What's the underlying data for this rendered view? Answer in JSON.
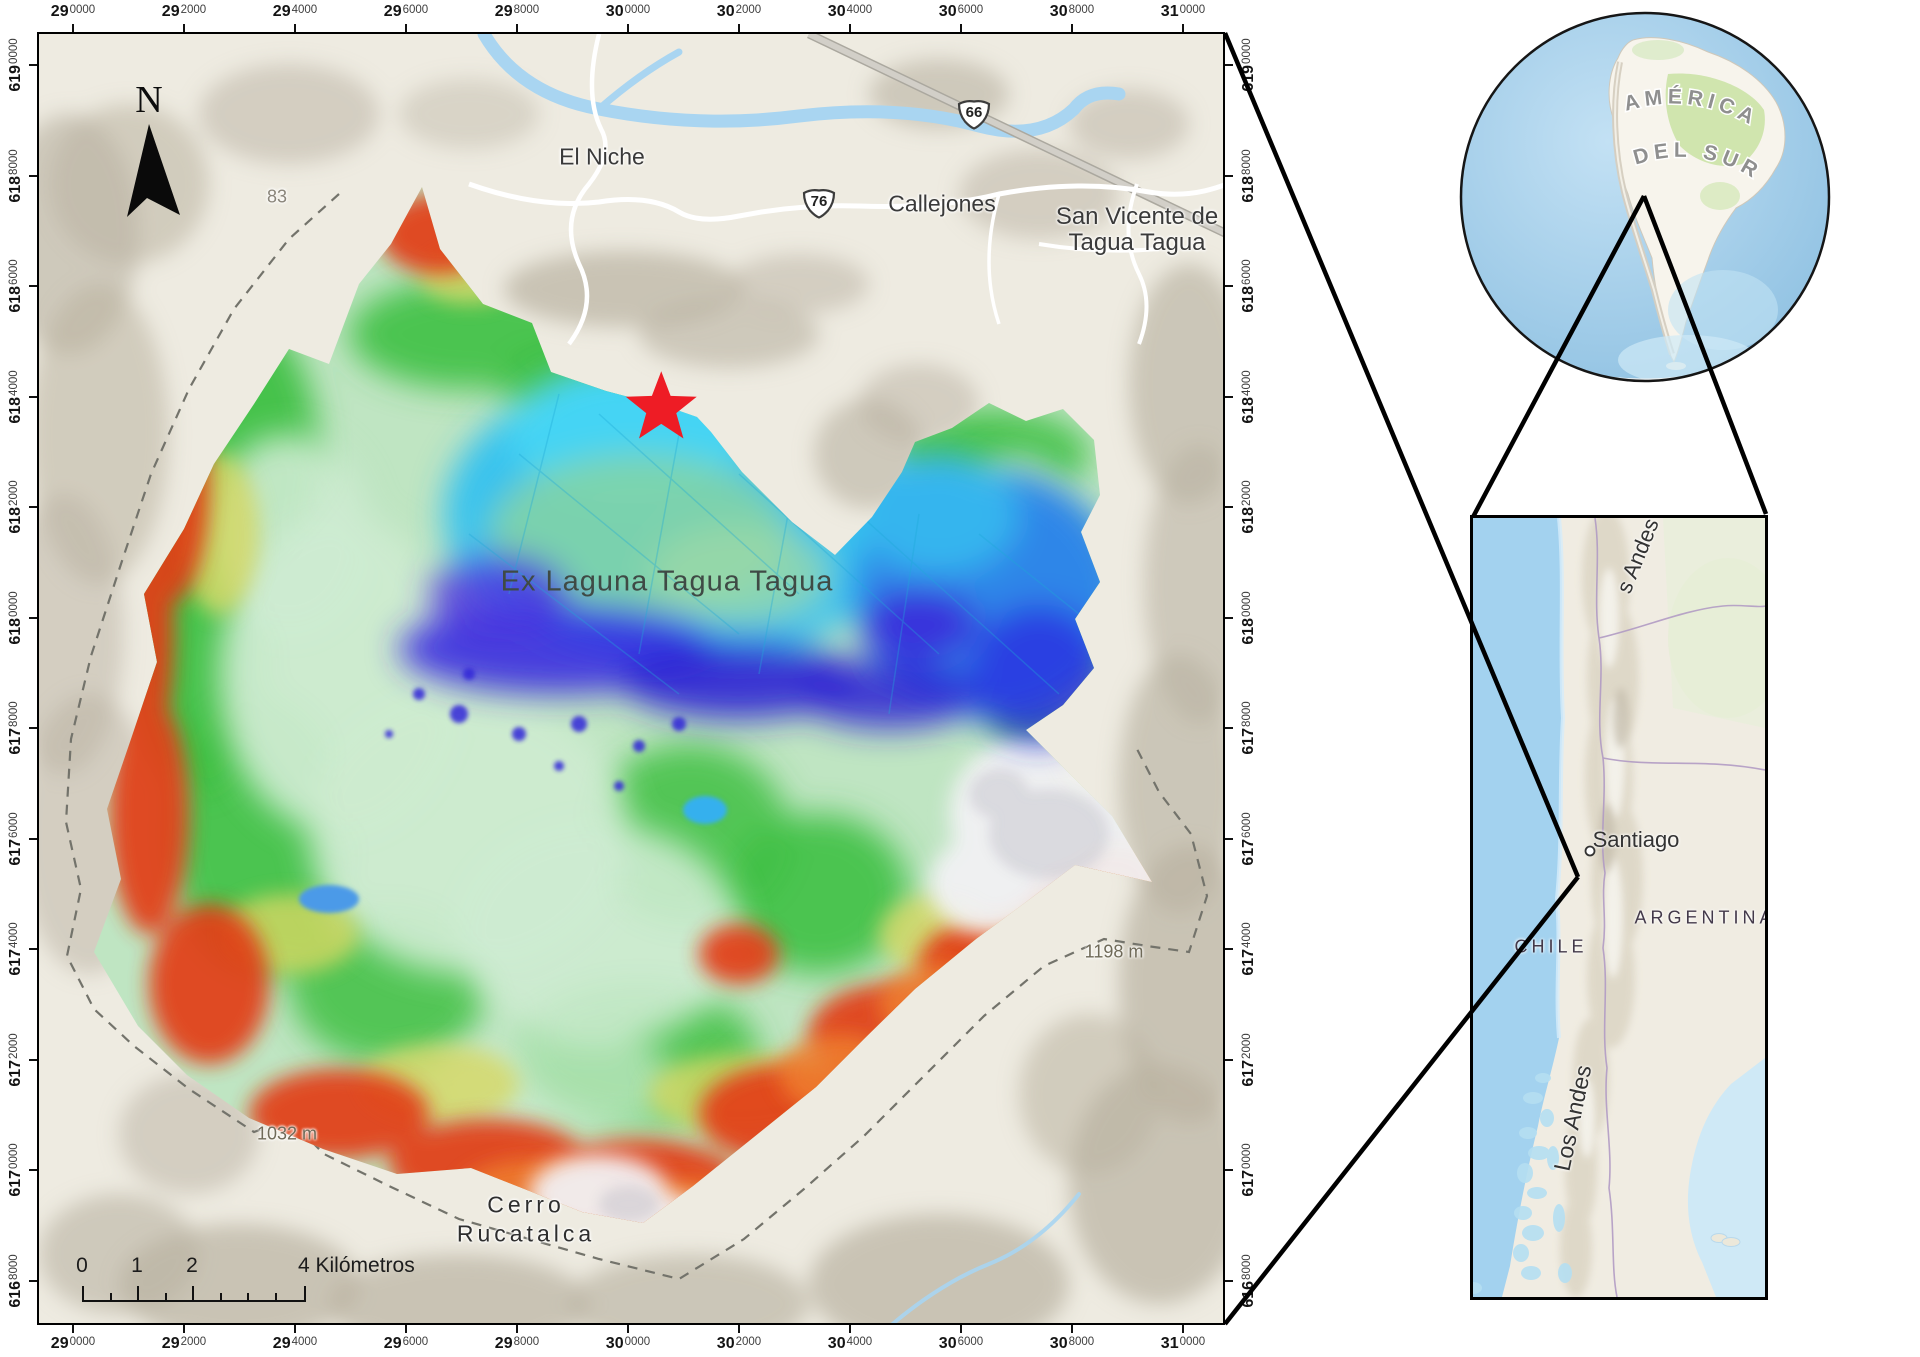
{
  "palette": {
    "background": "#ffffff",
    "basemap_beige": "#eeebe1",
    "hillshade_gray": "#b9b2a1",
    "water_blue": "#a9d5f1",
    "frame_black": "#000000",
    "star_red": "#ee1c25",
    "dem_deep_blue": "#3a2ee0",
    "dem_cyan": "#38c2ee",
    "dem_green": "#3fc043",
    "dem_yellow": "#d6d763",
    "dem_red": "#e23d13",
    "dem_orange": "#ef7f2e",
    "dem_white": "#f2f1f4",
    "inset_ocean": "#a3d2ef"
  },
  "main_map": {
    "x_ticks": [
      {
        "big": "29",
        "small": "0000"
      },
      {
        "big": "29",
        "small": "2000"
      },
      {
        "big": "29",
        "small": "4000"
      },
      {
        "big": "29",
        "small": "6000"
      },
      {
        "big": "29",
        "small": "8000"
      },
      {
        "big": "30",
        "small": "0000"
      },
      {
        "big": "30",
        "small": "2000"
      },
      {
        "big": "30",
        "small": "4000"
      },
      {
        "big": "30",
        "small": "6000"
      },
      {
        "big": "30",
        "small": "8000"
      },
      {
        "big": "31",
        "small": "0000"
      }
    ],
    "y_ticks": [
      {
        "big": "619",
        "small": "0000"
      },
      {
        "big": "618",
        "small": "8000"
      },
      {
        "big": "618",
        "small": "6000"
      },
      {
        "big": "618",
        "small": "4000"
      },
      {
        "big": "618",
        "small": "2000"
      },
      {
        "big": "618",
        "small": "0000"
      },
      {
        "big": "617",
        "small": "8000"
      },
      {
        "big": "617",
        "small": "6000"
      },
      {
        "big": "617",
        "small": "4000"
      },
      {
        "big": "617",
        "small": "2000"
      },
      {
        "big": "617",
        "small": "0000"
      },
      {
        "big": "616",
        "small": "8000"
      }
    ],
    "labels": {
      "el_niche": "El Niche",
      "callejones": "Callejones",
      "san_vicente_1": "San Vicente de",
      "san_vicente_2": "Tagua Tagua",
      "ex_laguna": "Ex Laguna Tagua Tagua",
      "cerro_1": "Cerro",
      "cerro_2": "Rucatalca",
      "peak_83": "83",
      "peak_1032": "1032 m",
      "peak_1198": "1198 m",
      "route_66": "66",
      "route_76": "76"
    },
    "north_label": "N",
    "scale_bar": {
      "tick_labels": [
        "0",
        "1",
        "2"
      ],
      "end_label": "4 Kilómetros"
    }
  },
  "globe_inset": {
    "line1": "AMÉRICA",
    "line2": "DEL SUR"
  },
  "chile_inset": {
    "andes_partial": "s Andes",
    "santiago": "Santiago",
    "argentina": "ARGENTINA",
    "chile": "CHILE",
    "los_andes": "Los Andes"
  }
}
